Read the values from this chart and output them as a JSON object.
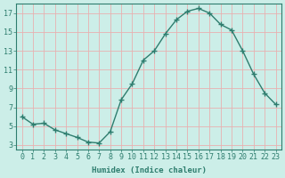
{
  "x": [
    0,
    1,
    2,
    3,
    4,
    5,
    6,
    7,
    8,
    9,
    10,
    11,
    12,
    13,
    14,
    15,
    16,
    17,
    18,
    19,
    20,
    21,
    22,
    23
  ],
  "y": [
    6.0,
    5.2,
    5.3,
    4.6,
    4.2,
    3.8,
    3.3,
    3.2,
    4.4,
    7.8,
    9.5,
    12.0,
    13.0,
    14.8,
    16.3,
    17.2,
    17.5,
    17.0,
    15.8,
    15.2,
    13.0,
    10.5,
    8.5,
    7.3
  ],
  "xlabel": "Humidex (Indice chaleur)",
  "bg_color": "#cceee8",
  "grid_color_major": "#e8b0b0",
  "grid_color_minor": "#e8b0b0",
  "line_color": "#2e7d6e",
  "marker_color": "#2e7d6e",
  "ylim": [
    2.5,
    18.0
  ],
  "xlim": [
    -0.5,
    23.5
  ],
  "yticks": [
    3,
    5,
    7,
    9,
    11,
    13,
    15,
    17
  ],
  "xticks": [
    0,
    1,
    2,
    3,
    4,
    5,
    6,
    7,
    8,
    9,
    10,
    11,
    12,
    13,
    14,
    15,
    16,
    17,
    18,
    19,
    20,
    21,
    22,
    23
  ],
  "tick_color": "#2e7d6e",
  "label_fontsize": 6.0,
  "xlabel_fontsize": 6.5,
  "spine_color": "#2e7d6e"
}
